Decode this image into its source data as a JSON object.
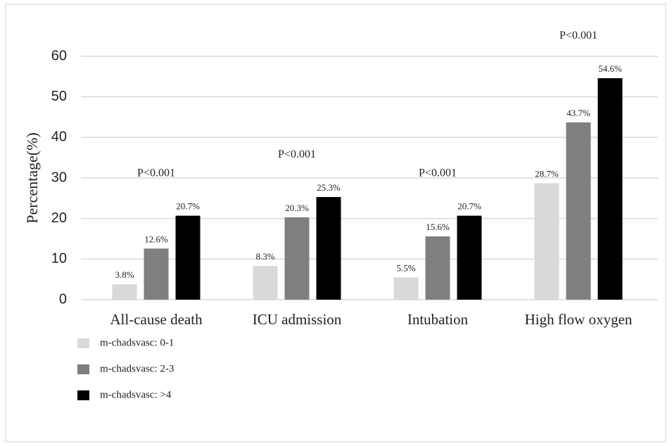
{
  "chart_data": {
    "type": "bar",
    "y_label": "Percentage(%)",
    "categories": [
      "All-cause death",
      "ICU admission",
      "Intubation",
      "High flow oxygen"
    ],
    "annotations": [
      "P<0.001",
      "P<0.001",
      "P<0.001",
      "P<0.001"
    ],
    "series": [
      {
        "name": "m-chadsvasc: 0-1",
        "color": "#d9d9d9",
        "values": [
          3.8,
          8.3,
          5.5,
          28.7
        ],
        "value_labels": [
          "3.8%",
          "8.3%",
          "5.5%",
          "28.7%"
        ]
      },
      {
        "name": "m-chadsvasc: 2-3",
        "color": "#7f7f7f",
        "values": [
          12.6,
          20.3,
          15.6,
          43.7
        ],
        "value_labels": [
          "12.6%",
          "20.3%",
          "15.6%",
          "43.7%"
        ]
      },
      {
        "name": "m-chadsvasc: >4",
        "color": "#000000",
        "values": [
          20.7,
          25.3,
          20.7,
          54.6
        ],
        "value_labels": [
          "20.7%",
          "25.3%",
          "20.7%",
          "54.6%"
        ]
      }
    ],
    "ylim": [
      0,
      60
    ],
    "yticks": [
      0,
      10,
      20,
      30,
      40,
      50,
      60
    ],
    "grid": true,
    "legend": "bottom-left"
  }
}
